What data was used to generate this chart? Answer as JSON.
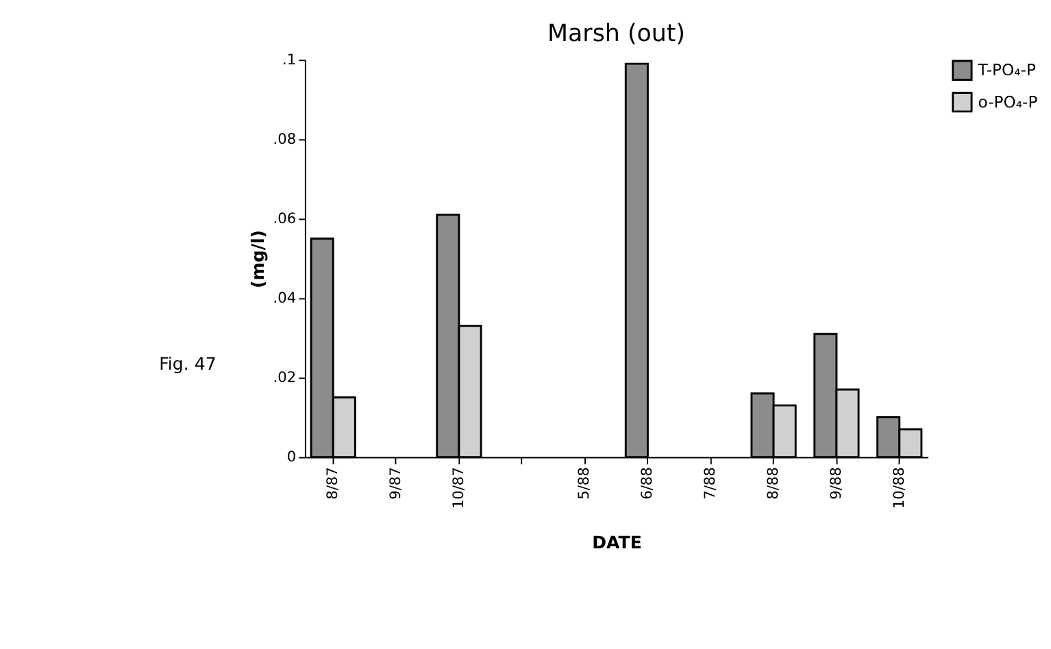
{
  "chart_data": {
    "type": "bar",
    "title": "Marsh (out)",
    "xlabel": "DATE",
    "ylabel": "(mg/l)",
    "categories": [
      "8/87",
      "9/87",
      "10/87",
      null,
      "5/88",
      "6/88",
      "7/88",
      "8/88",
      "9/88",
      "10/88"
    ],
    "series": [
      {
        "name": "T-PO₄-P",
        "color": "#8c8c8c",
        "values": [
          0.055,
          null,
          0.061,
          null,
          null,
          0.099,
          null,
          0.016,
          0.031,
          0.01
        ]
      },
      {
        "name": "o-PO₄-P",
        "color": "#d0d0d0",
        "values": [
          0.015,
          null,
          0.033,
          null,
          null,
          null,
          null,
          0.013,
          0.017,
          0.007
        ]
      }
    ],
    "ylim": [
      0,
      0.1
    ],
    "yticks": [
      {
        "value": 0,
        "label": "0"
      },
      {
        "value": 0.02,
        "label": ".02"
      },
      {
        "value": 0.04,
        "label": ".04"
      },
      {
        "value": 0.06,
        "label": ".06"
      },
      {
        "value": 0.08,
        "label": ".08"
      },
      {
        "value": 0.1,
        "label": ".1"
      }
    ],
    "grid": false,
    "legend": "top right",
    "annotations": [
      "Fig. 47"
    ]
  }
}
